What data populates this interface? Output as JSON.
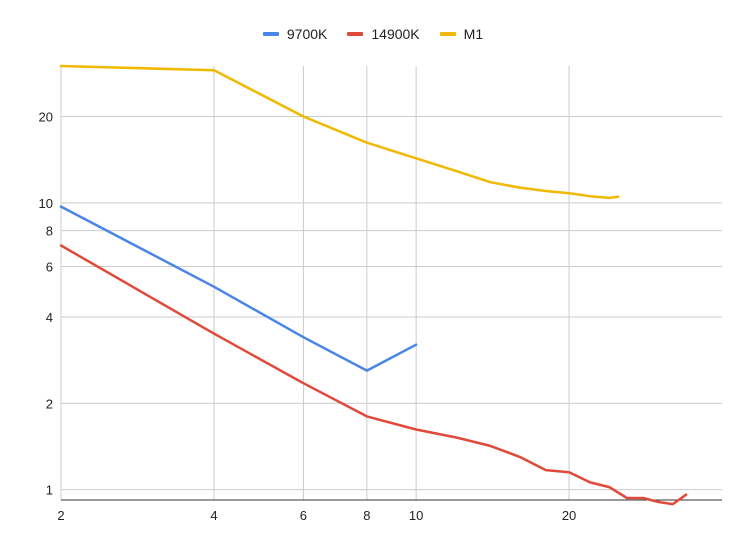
{
  "chart_data": {
    "type": "line",
    "title": "",
    "xlabel": "",
    "ylabel": "",
    "x_scale": "log",
    "y_scale": "log",
    "xlim": [
      2,
      40
    ],
    "ylim": [
      0.92,
      30
    ],
    "x_ticks": [
      "2",
      "4",
      "6",
      "8",
      "10",
      "20"
    ],
    "x_tick_values": [
      2,
      4,
      6,
      8,
      10,
      20
    ],
    "y_ticks": [
      "1",
      "2",
      "4",
      "6",
      "8",
      "10",
      "20"
    ],
    "y_tick_values": [
      1,
      2,
      4,
      6,
      8,
      10,
      20
    ],
    "grid": true,
    "legend_position": "top",
    "series": [
      {
        "name": "9700K",
        "color": "#4a86e8",
        "points": [
          [
            2,
            9.7
          ],
          [
            4,
            5.1
          ],
          [
            6,
            3.4
          ],
          [
            8,
            2.6
          ],
          [
            10,
            3.2
          ]
        ]
      },
      {
        "name": "14900K",
        "color": "#e04a3b",
        "points": [
          [
            2,
            7.1
          ],
          [
            4,
            3.5
          ],
          [
            6,
            2.35
          ],
          [
            8,
            1.8
          ],
          [
            10,
            1.62
          ],
          [
            12,
            1.52
          ],
          [
            14,
            1.42
          ],
          [
            16,
            1.3
          ],
          [
            18,
            1.17
          ],
          [
            20,
            1.15
          ],
          [
            22,
            1.06
          ],
          [
            24,
            1.02
          ],
          [
            26,
            0.935
          ],
          [
            28,
            0.935
          ],
          [
            30,
            0.905
          ],
          [
            32,
            0.89
          ],
          [
            34,
            0.96
          ]
        ]
      },
      {
        "name": "M1",
        "color": "#f1b800",
        "points": [
          [
            2,
            30
          ],
          [
            4,
            29
          ],
          [
            6,
            20
          ],
          [
            8,
            16.2
          ],
          [
            10,
            14.3
          ],
          [
            12,
            12.9
          ],
          [
            14,
            11.8
          ],
          [
            16,
            11.3
          ],
          [
            18,
            11.0
          ],
          [
            20,
            10.8
          ],
          [
            22,
            10.55
          ],
          [
            24,
            10.4
          ],
          [
            25,
            10.5
          ]
        ]
      }
    ]
  }
}
